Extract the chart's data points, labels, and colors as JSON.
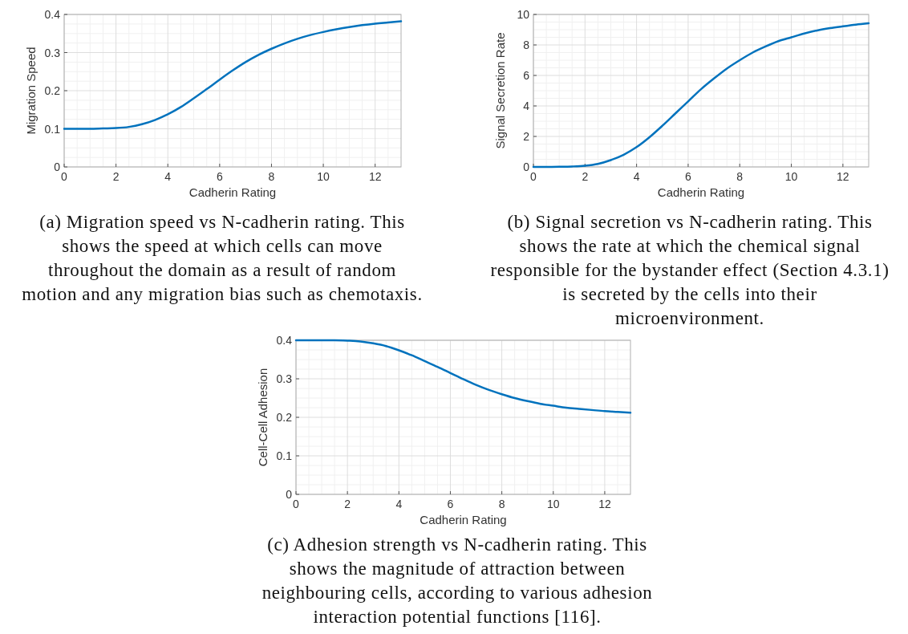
{
  "chart_data": [
    {
      "type": "line",
      "xlabel": "Cadherin Rating",
      "ylabel": "Migration Speed",
      "x": [
        0,
        0.5,
        1,
        1.5,
        2,
        2.5,
        3,
        3.5,
        4,
        4.5,
        5,
        5.5,
        6,
        6.5,
        7,
        7.5,
        8,
        8.5,
        9,
        9.5,
        10,
        10.5,
        11,
        11.5,
        12,
        12.5,
        13
      ],
      "series": [
        {
          "color": "#0072bd",
          "values": [
            0.1,
            0.1,
            0.1,
            0.101,
            0.102,
            0.105,
            0.112,
            0.123,
            0.138,
            0.157,
            0.18,
            0.204,
            0.229,
            0.253,
            0.275,
            0.294,
            0.31,
            0.324,
            0.336,
            0.346,
            0.354,
            0.361,
            0.367,
            0.372,
            0.376,
            0.379,
            0.382
          ]
        }
      ],
      "xlim": [
        0,
        13
      ],
      "xticks": [
        0,
        2,
        4,
        6,
        8,
        10,
        12
      ],
      "ylim": [
        0,
        0.4
      ],
      "yticks": [
        0,
        0.1,
        0.2,
        0.3,
        0.4
      ],
      "grid": true,
      "annotations": [
        "(a) Migration speed vs N-cadherin rating. This",
        "shows the speed at which cells can move",
        "throughout the domain as a result of random",
        "motion and any migration bias such as chemotaxis."
      ]
    },
    {
      "type": "line",
      "xlabel": "Cadherin Rating",
      "ylabel": "Signal Secretion Rate",
      "x": [
        0,
        0.5,
        1,
        1.5,
        2,
        2.5,
        3,
        3.5,
        4,
        4.5,
        5,
        5.5,
        6,
        6.5,
        7,
        7.5,
        8,
        8.5,
        9,
        9.5,
        10,
        10.5,
        11,
        11.5,
        12,
        12.5,
        13
      ],
      "series": [
        {
          "color": "#0072bd",
          "values": [
            0,
            0,
            0.01,
            0.03,
            0.08,
            0.2,
            0.45,
            0.8,
            1.3,
            1.95,
            2.7,
            3.5,
            4.3,
            5.1,
            5.8,
            6.45,
            7.0,
            7.5,
            7.9,
            8.25,
            8.5,
            8.75,
            8.95,
            9.1,
            9.22,
            9.33,
            9.42
          ]
        }
      ],
      "xlim": [
        0,
        13
      ],
      "xticks": [
        0,
        2,
        4,
        6,
        8,
        10,
        12
      ],
      "ylim": [
        0,
        10
      ],
      "yticks": [
        0,
        2,
        4,
        6,
        8,
        10
      ],
      "grid": true,
      "annotations": [
        "(b) Signal secretion vs N-cadherin rating. This",
        "shows the rate at which the chemical signal",
        "responsible for the bystander effect (Section 4.3.1)",
        "is secreted by the cells into their",
        "microenvironment."
      ]
    },
    {
      "type": "line",
      "xlabel": "Cadherin Rating",
      "ylabel": "Cell-Cell Adhesion",
      "x": [
        0,
        0.5,
        1,
        1.5,
        2,
        2.5,
        3,
        3.5,
        4,
        4.5,
        5,
        5.5,
        6,
        6.5,
        7,
        7.5,
        8,
        8.5,
        9,
        9.5,
        10,
        10.5,
        11,
        11.5,
        12,
        12.5,
        13
      ],
      "series": [
        {
          "color": "#0072bd",
          "values": [
            0.4,
            0.4,
            0.4,
            0.4,
            0.399,
            0.397,
            0.392,
            0.385,
            0.374,
            0.361,
            0.346,
            0.331,
            0.315,
            0.299,
            0.284,
            0.271,
            0.26,
            0.25,
            0.242,
            0.235,
            0.23,
            0.225,
            0.222,
            0.219,
            0.216,
            0.214,
            0.212
          ]
        }
      ],
      "xlim": [
        0,
        13
      ],
      "xticks": [
        0,
        2,
        4,
        6,
        8,
        10,
        12
      ],
      "ylim": [
        0,
        0.4
      ],
      "yticks": [
        0,
        0.1,
        0.2,
        0.3,
        0.4
      ],
      "grid": true,
      "annotations": [
        "(c) Adhesion strength vs N-cadherin rating. This",
        "shows the magnitude of attraction between",
        "neighbouring cells, according to various adhesion",
        "interaction potential functions [116]."
      ]
    }
  ]
}
